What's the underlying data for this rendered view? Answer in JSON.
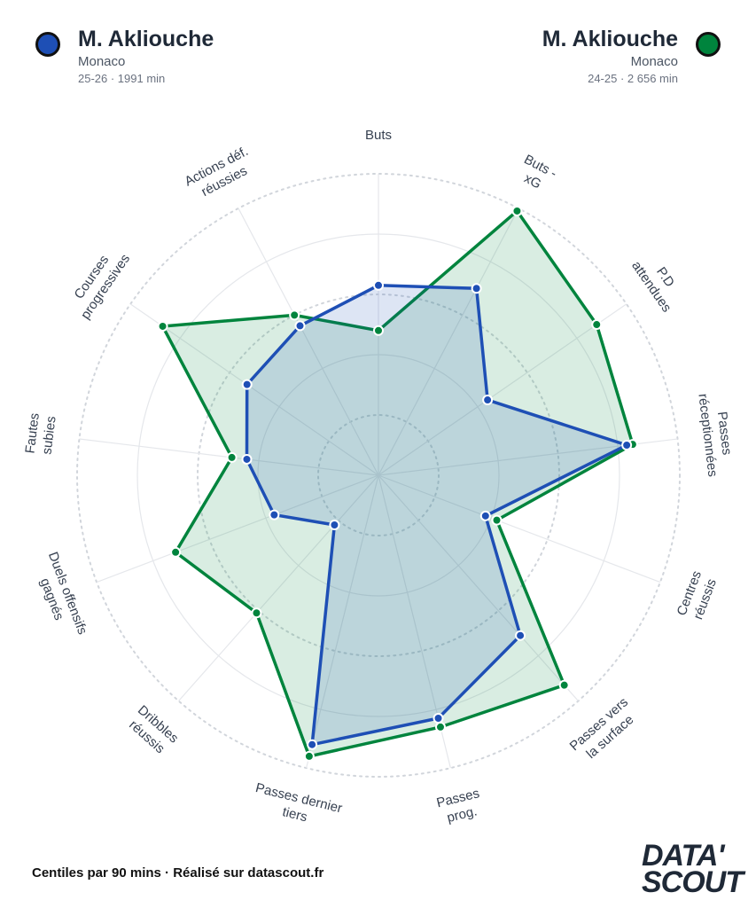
{
  "players": [
    {
      "name": "M. Akliouche",
      "team": "Monaco",
      "meta": "25-26 · 1991 min",
      "color": "#1e4fb5"
    },
    {
      "name": "M. Akliouche",
      "team": "Monaco",
      "meta": "24-25 · 2 656 min",
      "color": "#00843d"
    }
  ],
  "footer": "Centiles par 90 mins · Réalisé sur datascout.fr",
  "logo": {
    "line1": "DATA'",
    "line2": "SCOUT"
  },
  "chart_data": {
    "type": "radar",
    "range": [
      0,
      100
    ],
    "rings": [
      20,
      40,
      60,
      80,
      100
    ],
    "categories": [
      [
        "Buts"
      ],
      [
        "Buts -",
        "xG"
      ],
      [
        "P.D",
        "attendues"
      ],
      [
        "Passes",
        "réceptionnées"
      ],
      [
        "Centres",
        "réussis"
      ],
      [
        "Passes vers",
        "la surface"
      ],
      [
        "Passes",
        "prog."
      ],
      [
        "Passes dernier",
        "tiers"
      ],
      [
        "Dribbles",
        "réussis"
      ],
      [
        "Duels offensifs",
        "gagnés"
      ],
      [
        "Fautes",
        "subies"
      ],
      [
        "Courses",
        "progressives"
      ],
      [
        "Actions déf.",
        "réussies"
      ]
    ],
    "series": [
      {
        "name": "M. Akliouche 24-25",
        "color": "#00843d",
        "values": [
          48,
          99,
          88,
          85,
          42,
          93,
          86,
          96,
          61,
          72,
          49,
          87,
          60
        ]
      },
      {
        "name": "M. Akliouche 25-26",
        "color": "#1e4fb5",
        "values": [
          63,
          70,
          44,
          83,
          38,
          71,
          83,
          92,
          22,
          37,
          44,
          53,
          56
        ]
      }
    ]
  }
}
